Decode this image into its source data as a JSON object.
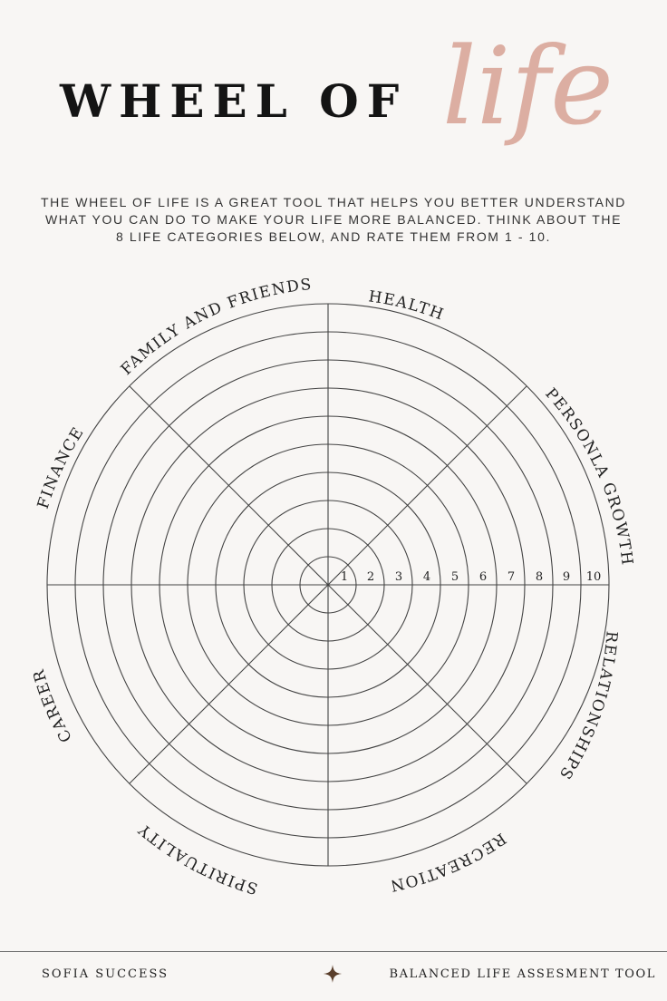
{
  "title": {
    "main": "WHEEL OF",
    "script": "life"
  },
  "intro": {
    "line1": "THE WHEEL OF LIFE IS A GREAT TOOL THAT HELPS YOU BETTER UNDERSTAND",
    "line2": "WHAT YOU CAN DO TO MAKE YOUR LIFE MORE BALANCED. THINK ABOUT THE",
    "line3": "8 LIFE CATEGORIES BELOW, AND RATE THEM FROM 1 - 10."
  },
  "wheel": {
    "categories": {
      "health": "HEALTH",
      "personal_growth": "PERSONLA GROWTH",
      "relationships": "RELATIONSHIPS",
      "recreation": "RECREATION",
      "spirituality": "SPIRITUALITY",
      "career": "CAREER",
      "finance": "FINANCE",
      "family": "FAMILY AND FRIENDS"
    },
    "scale": [
      "1",
      "2",
      "3",
      "4",
      "5",
      "6",
      "7",
      "8",
      "9",
      "10"
    ]
  },
  "footer": {
    "left": "SOFIA SUCCESS",
    "right": "BALANCED LIFE ASSESMENT TOOL",
    "icon": "sparkle-icon"
  },
  "colors": {
    "accent": "#dcaea2",
    "line": "#444444",
    "background": "#f8f6f4"
  }
}
